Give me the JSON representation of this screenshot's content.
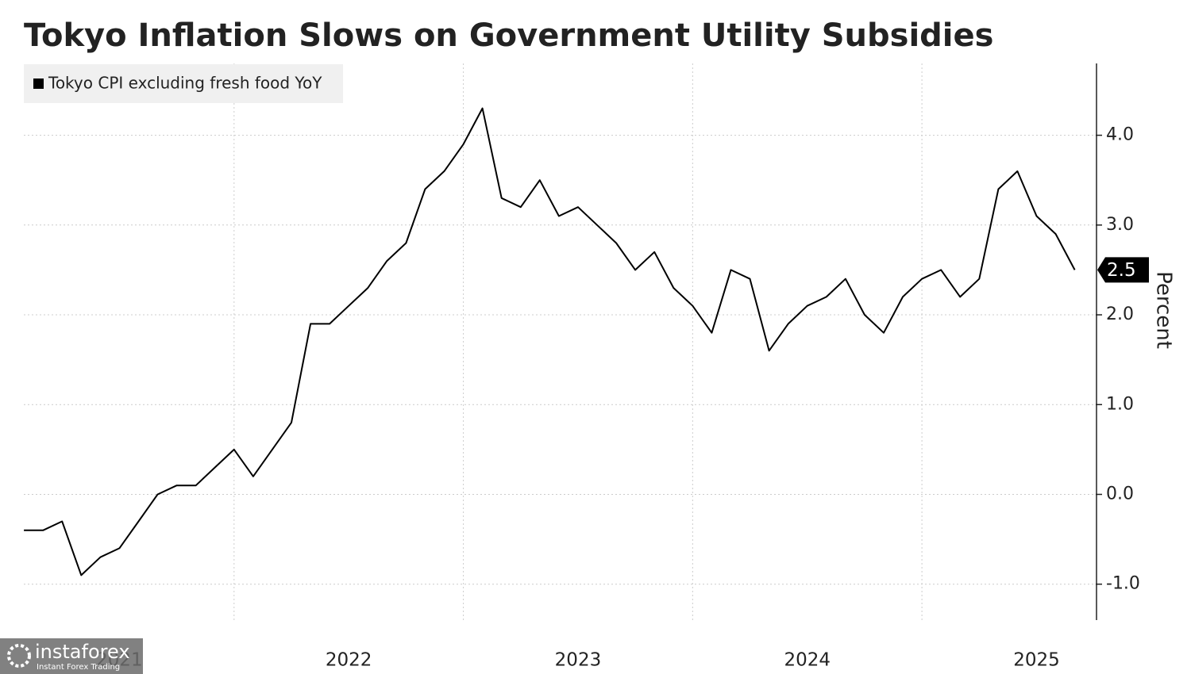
{
  "chart_data": {
    "type": "line",
    "title": "Tokyo Inflation Slows on Government Utility Subsidies",
    "y_label": "Percent",
    "x": [
      "2021-01",
      "2021-02",
      "2021-03",
      "2021-04",
      "2021-05",
      "2021-06",
      "2021-07",
      "2021-08",
      "2021-09",
      "2021-10",
      "2021-11",
      "2021-12",
      "2022-01",
      "2022-02",
      "2022-03",
      "2022-04",
      "2022-05",
      "2022-06",
      "2022-07",
      "2022-08",
      "2022-09",
      "2022-10",
      "2022-11",
      "2022-12",
      "2023-01",
      "2023-02",
      "2023-03",
      "2023-04",
      "2023-05",
      "2023-06",
      "2023-07",
      "2023-08",
      "2023-09",
      "2023-10",
      "2023-11",
      "2023-12",
      "2024-01",
      "2024-02",
      "2024-03",
      "2024-04",
      "2024-05",
      "2024-06",
      "2024-07",
      "2024-08",
      "2024-09",
      "2024-10",
      "2024-11",
      "2024-12",
      "2025-01",
      "2025-02",
      "2025-03",
      "2025-04",
      "2025-05",
      "2025-06",
      "2025-07",
      "2025-08"
    ],
    "series": [
      {
        "name": "Tokyo CPI excluding fresh food YoY",
        "color": "#000000",
        "values": [
          -0.4,
          -0.4,
          -0.3,
          -0.9,
          -0.7,
          -0.6,
          -0.3,
          0.0,
          0.1,
          0.1,
          0.3,
          0.5,
          0.2,
          0.5,
          0.8,
          1.9,
          1.9,
          2.1,
          2.3,
          2.6,
          2.8,
          3.4,
          3.6,
          3.9,
          4.3,
          3.3,
          3.2,
          3.5,
          3.1,
          3.2,
          3.0,
          2.8,
          2.5,
          2.7,
          2.3,
          2.1,
          1.8,
          2.5,
          2.4,
          1.6,
          1.9,
          2.1,
          2.2,
          2.4,
          2.0,
          1.8,
          2.2,
          2.4,
          2.5,
          2.2,
          2.4,
          3.4,
          3.6,
          3.1,
          2.9,
          2.5
        ]
      }
    ],
    "xlim": [
      2021.083,
      2025.758
    ],
    "xticks": [
      2021,
      2022,
      2023,
      2024,
      2025
    ],
    "ylim": [
      -1.4,
      4.8
    ],
    "yticks": [
      {
        "value": -1,
        "label": "-1.0"
      },
      {
        "value": 0,
        "label": "0.0"
      },
      {
        "value": 1,
        "label": "1.0"
      },
      {
        "value": 2,
        "label": "2.0"
      },
      {
        "value": 3,
        "label": "3.0"
      },
      {
        "value": 4,
        "label": "4.0"
      }
    ],
    "grid": true,
    "legend": "top-left"
  },
  "watermark": {
    "name": "instaforex",
    "tagline": "Instant Forex Trading"
  }
}
